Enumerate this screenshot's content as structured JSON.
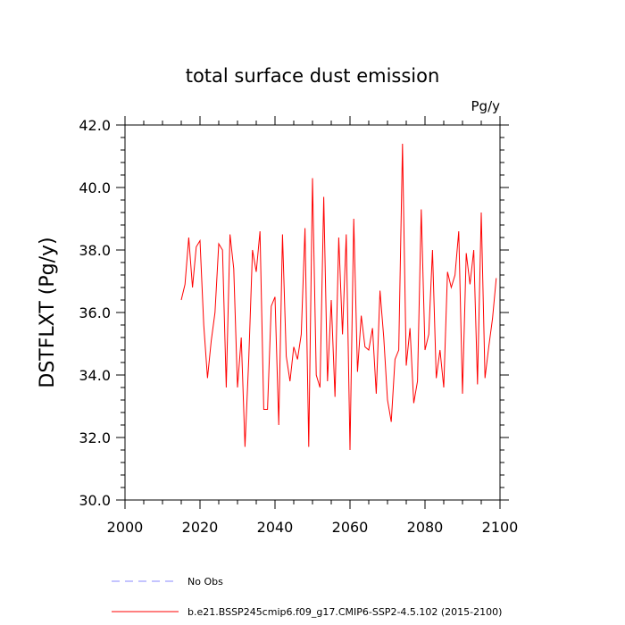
{
  "chart_data": {
    "type": "line",
    "title": "total surface dust emission",
    "units_label": "Pg/y",
    "ylabel": "DSTFLXT  (Pg/y)",
    "xlabel": "",
    "xlim": [
      2000,
      2100
    ],
    "ylim": [
      30.0,
      42.0
    ],
    "x_ticks": [
      2000,
      2020,
      2040,
      2060,
      2080,
      2100
    ],
    "y_ticks": [
      "30.0",
      "32.0",
      "34.0",
      "36.0",
      "38.0",
      "40.0",
      "42.0"
    ],
    "series": [
      {
        "name": "b.e21.BSSP245cmip6.f09_g17.CMIP6-SSP2-4.5.102 (2015-2100)",
        "color": "#ff0000",
        "style": "solid",
        "x_start": 2015,
        "values": [
          36.4,
          36.9,
          38.4,
          36.8,
          38.1,
          38.3,
          35.6,
          33.9,
          35.1,
          36.0,
          38.2,
          38.0,
          33.6,
          38.5,
          37.4,
          33.6,
          35.2,
          31.7,
          34.5,
          38.0,
          37.3,
          38.6,
          32.9,
          32.9,
          36.2,
          36.5,
          32.4,
          38.5,
          34.6,
          33.8,
          34.9,
          34.5,
          35.3,
          38.7,
          31.7,
          40.3,
          34.0,
          33.6,
          39.7,
          33.8,
          36.4,
          33.3,
          38.4,
          35.3,
          38.5,
          31.6,
          39.0,
          34.1,
          35.9,
          34.9,
          34.8,
          35.5,
          33.4,
          36.7,
          35.2,
          33.2,
          32.5,
          34.5,
          34.8,
          41.4,
          34.3,
          35.5,
          33.1,
          33.8,
          39.3,
          34.8,
          35.3,
          38.0,
          33.9,
          34.8,
          33.6,
          37.3,
          36.8,
          37.2,
          38.6,
          33.4,
          37.9,
          36.9,
          38.0,
          33.7,
          39.2,
          33.9,
          34.9,
          35.8,
          37.1
        ]
      },
      {
        "name": "No Obs",
        "color": "#8888ff",
        "style": "dashed",
        "values": []
      }
    ]
  }
}
